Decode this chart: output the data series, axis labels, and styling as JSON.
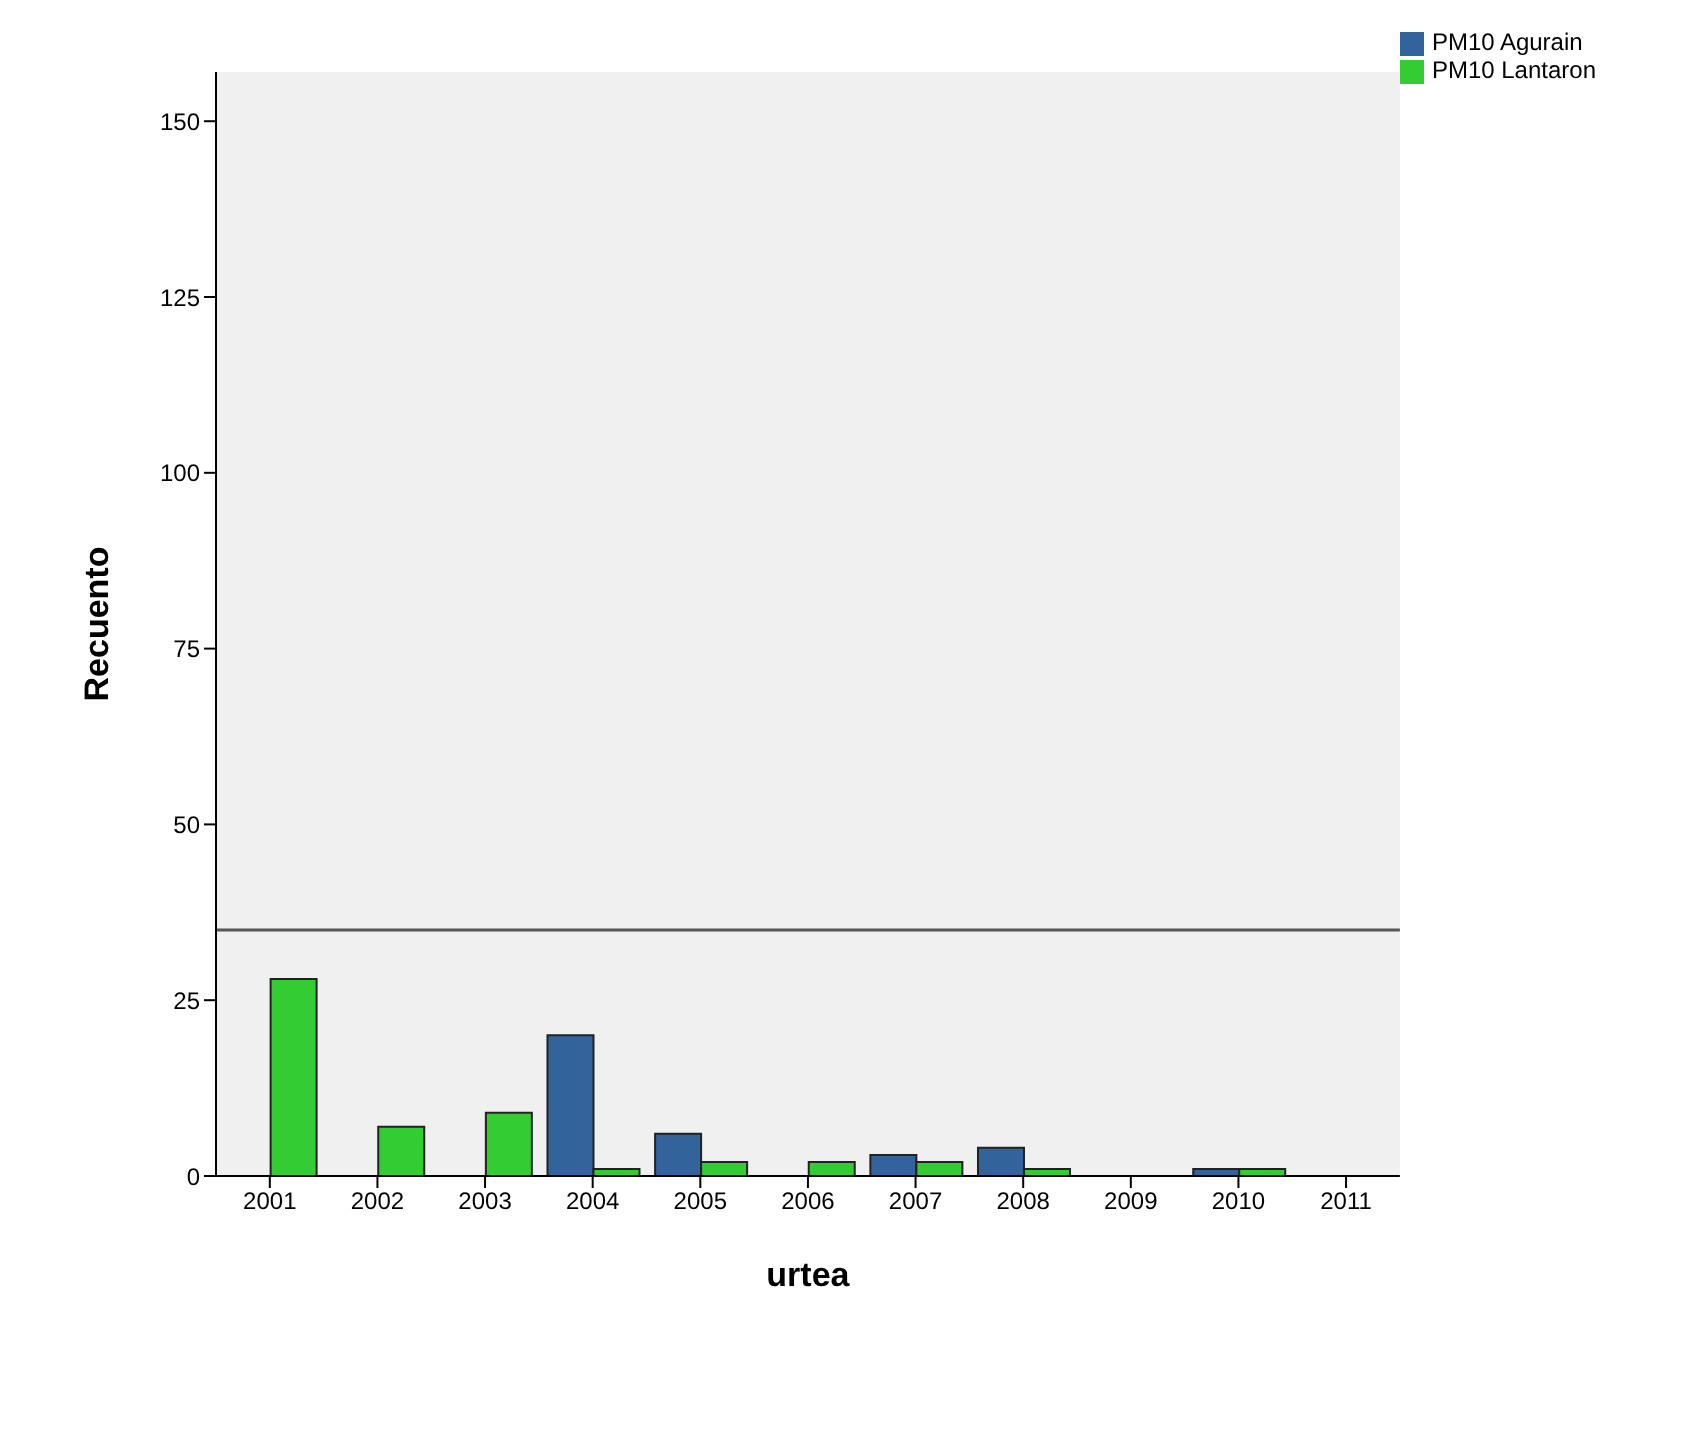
{
  "chart_data": {
    "type": "bar",
    "xlabel": "urtea",
    "ylabel": "Recuento",
    "categories": [
      "2001",
      "2002",
      "2003",
      "2004",
      "2005",
      "2006",
      "2007",
      "2008",
      "2009",
      "2010",
      "2011"
    ],
    "series": [
      {
        "name": "PM10 Agurain",
        "color": "#32639a",
        "values": [
          null,
          null,
          null,
          20,
          6,
          null,
          3,
          4,
          null,
          1,
          null
        ]
      },
      {
        "name": "PM10 Lantaron",
        "color": "#33cc33",
        "values": [
          28,
          7,
          9,
          1,
          2,
          2,
          2,
          1,
          null,
          1,
          null
        ]
      }
    ],
    "ylim": [
      0,
      157
    ],
    "yticks": [
      0,
      25,
      50,
      75,
      100,
      125,
      150
    ],
    "ref_lines": [
      {
        "axis": "y",
        "value": 35,
        "color": "#555555"
      }
    ],
    "legend": "top right",
    "grid": false
  }
}
